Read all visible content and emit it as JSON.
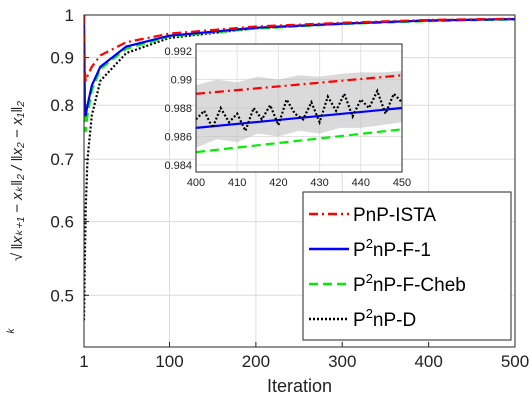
{
  "chart_data": {
    "type": "line",
    "xlabel": "Iteration",
    "ylabel_math": "k-th root of ‖x_{k+1} − x_k‖₂ / ‖x₂ − x₁‖₂",
    "x_axis": {
      "scale": "linear",
      "range": [
        1,
        500
      ],
      "ticks": [
        1,
        100,
        200,
        300,
        400,
        500
      ]
    },
    "y_axis": {
      "scale": "log",
      "range": [
        0.44,
        1.0
      ],
      "ticks": [
        0.5,
        0.6,
        0.7,
        0.8,
        0.9,
        1
      ]
    },
    "grid": true,
    "legend": {
      "position": "bottom-right"
    },
    "series": [
      {
        "name": "PnP-ISTA",
        "color": "#ff0000",
        "dash": "dash-dot",
        "x": [
          1,
          2,
          3,
          5,
          10,
          20,
          50,
          100,
          200,
          300,
          400,
          500
        ],
        "y": [
          1.0,
          0.87,
          0.85,
          0.86,
          0.88,
          0.905,
          0.935,
          0.955,
          0.972,
          0.981,
          0.988,
          0.991
        ]
      },
      {
        "name": "P^2nP-F-1",
        "color": "#0000ff",
        "dash": "solid",
        "x": [
          1,
          2,
          3,
          5,
          10,
          20,
          50,
          100,
          200,
          300,
          400,
          500
        ],
        "y": [
          1.0,
          0.79,
          0.78,
          0.8,
          0.84,
          0.88,
          0.925,
          0.95,
          0.969,
          0.979,
          0.9865,
          0.99
        ]
      },
      {
        "name": "P^2nP-F-Cheb",
        "color": "#00ee00",
        "dash": "dash",
        "x": [
          1,
          2,
          3,
          5,
          10,
          20,
          50,
          100,
          200,
          300,
          400,
          500
        ],
        "y": [
          1.0,
          0.76,
          0.75,
          0.78,
          0.83,
          0.875,
          0.92,
          0.948,
          0.967,
          0.978,
          0.985,
          0.989
        ]
      },
      {
        "name": "P^2nP-D",
        "color": "#000000",
        "dash": "dotted",
        "x": [
          1,
          2,
          3,
          5,
          10,
          20,
          50,
          100,
          200,
          300,
          400,
          500
        ],
        "y": [
          0.47,
          0.55,
          0.62,
          0.7,
          0.78,
          0.85,
          0.91,
          0.945,
          0.968,
          0.979,
          0.987,
          0.99
        ]
      }
    ],
    "inset": {
      "x_range": [
        400,
        450
      ],
      "x_ticks": [
        400,
        410,
        420,
        430,
        440,
        450
      ],
      "y_range": [
        0.9835,
        0.9925
      ],
      "y_ticks": [
        0.984,
        0.986,
        0.988,
        0.99,
        0.992
      ],
      "series": [
        {
          "name": "PnP-ISTA",
          "x": [
            400,
            450
          ],
          "y": [
            0.989,
            0.9903
          ]
        },
        {
          "name": "P^2nP-F-1",
          "x": [
            400,
            450
          ],
          "y": [
            0.9866,
            0.988
          ]
        },
        {
          "name": "P^2nP-F-Cheb",
          "x": [
            400,
            450
          ],
          "y": [
            0.9849,
            0.9865
          ]
        },
        {
          "name": "P^2nP-D",
          "x": [
            400,
            402,
            404,
            406,
            408,
            410,
            412,
            414,
            416,
            418,
            420,
            422,
            424,
            426,
            428,
            430,
            432,
            434,
            436,
            438,
            440,
            442,
            444,
            446,
            448,
            450
          ],
          "y": [
            0.9872,
            0.9878,
            0.9866,
            0.988,
            0.987,
            0.9876,
            0.9864,
            0.988,
            0.9872,
            0.9882,
            0.9868,
            0.9886,
            0.9876,
            0.9872,
            0.9884,
            0.987,
            0.9888,
            0.9878,
            0.989,
            0.9874,
            0.9886,
            0.988,
            0.9892,
            0.9876,
            0.989,
            0.9884
          ]
        }
      ],
      "band": {
        "color": "#bbbbbb",
        "x": [
          400,
          405,
          410,
          415,
          420,
          425,
          430,
          435,
          440,
          445,
          450
        ],
        "low": [
          0.9852,
          0.9858,
          0.9856,
          0.9862,
          0.986,
          0.9864,
          0.9862,
          0.9866,
          0.9866,
          0.9868,
          0.987
        ],
        "high": [
          0.9896,
          0.99,
          0.9898,
          0.9902,
          0.99,
          0.9903,
          0.9902,
          0.9904,
          0.9905,
          0.9905,
          0.9906
        ]
      }
    }
  }
}
